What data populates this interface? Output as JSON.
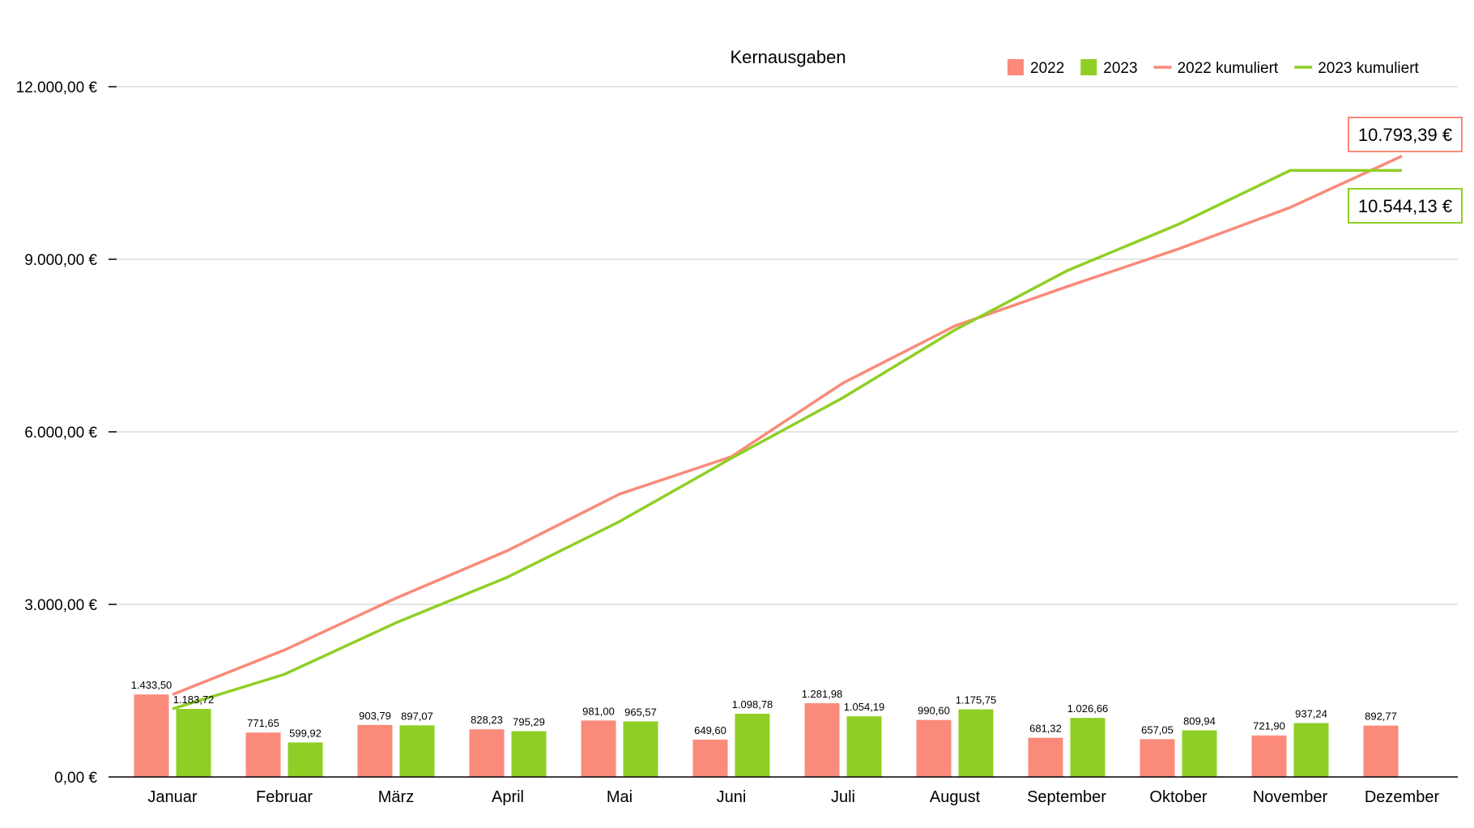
{
  "chart_data": {
    "type": "bar",
    "title": "Kernausgaben",
    "xlabel": "",
    "ylabel": "",
    "ylim": [
      0,
      12000
    ],
    "yticks": [
      {
        "value": 0,
        "label": "0,00 €"
      },
      {
        "value": 3000,
        "label": "3.000,00 €"
      },
      {
        "value": 6000,
        "label": "6.000,00 €"
      },
      {
        "value": 9000,
        "label": "9.000,00 €"
      },
      {
        "value": 12000,
        "label": "12.000,00 €"
      }
    ],
    "grid": true,
    "legend_position": "top-right",
    "categories": [
      "Januar",
      "Februar",
      "März",
      "April",
      "Mai",
      "Juni",
      "Juli",
      "August",
      "September",
      "Oktober",
      "November",
      "Dezember"
    ],
    "series": [
      {
        "name": "2022",
        "kind": "bar",
        "color": "#fa8a7a",
        "values": [
          1433.5,
          771.65,
          903.79,
          828.23,
          981.0,
          649.6,
          1281.98,
          990.6,
          681.32,
          657.05,
          721.9,
          892.77
        ],
        "labels": [
          "1.433,50",
          "771,65",
          "903,79",
          "828,23",
          "981,00",
          "649,60",
          "1.281,98",
          "990,60",
          "681,32",
          "657,05",
          "721,90",
          "892,77"
        ]
      },
      {
        "name": "2023",
        "kind": "bar",
        "color": "#8fcf25",
        "values": [
          1183.72,
          599.92,
          897.07,
          795.29,
          965.57,
          1098.78,
          1054.19,
          1175.75,
          1026.66,
          809.94,
          937.24,
          null
        ],
        "labels": [
          "1.183,72",
          "599,92",
          "897,07",
          "795,29",
          "965,57",
          "1.098,78",
          "1.054,19",
          "1.175,75",
          "1.026,66",
          "809,94",
          "937,24",
          null
        ]
      },
      {
        "name": "2022 kumuliert",
        "kind": "line",
        "color": "#fa8a7a",
        "values": [
          1433.5,
          2205.15,
          3108.94,
          3937.17,
          4918.17,
          5567.77,
          6849.75,
          7840.35,
          8521.67,
          9178.72,
          9900.62,
          10793.39
        ]
      },
      {
        "name": "2023 kumuliert",
        "kind": "line",
        "color": "#8fcf25",
        "values": [
          1183.72,
          1783.64,
          2680.71,
          3476.0,
          4441.57,
          5540.35,
          6594.54,
          7770.29,
          8796.95,
          9606.89,
          10544.13,
          10544.13
        ]
      }
    ],
    "callouts": [
      {
        "text": "10.793,39 €",
        "color": "#fa8a7a"
      },
      {
        "text": "10.544,13 €",
        "color": "#8fcf25"
      }
    ]
  }
}
